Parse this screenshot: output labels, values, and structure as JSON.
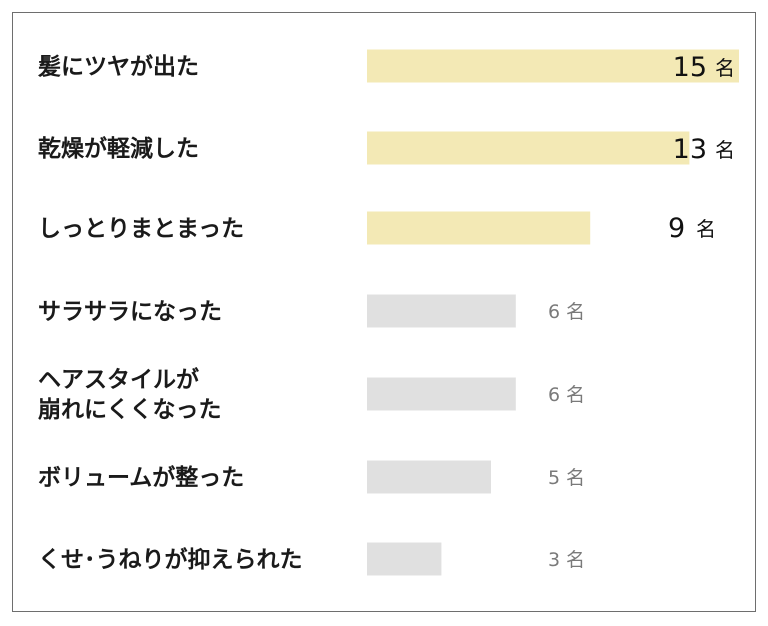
{
  "colors": {
    "highlight_bar": "#f3e9b5",
    "normal_bar": "#e0e0e0",
    "highlight_text": "#111111",
    "normal_text": "#7a7a7a"
  },
  "chart_data": {
    "type": "bar",
    "orientation": "horizontal",
    "unit": "名",
    "categories": [
      [
        "髪にツヤが出た"
      ],
      [
        "乾燥が軽減した"
      ],
      [
        "しっとりまとまった"
      ],
      [
        "サラサラになった"
      ],
      [
        "ヘアスタイルが",
        "崩れにくくなった"
      ],
      [
        "ボリュームが整った"
      ],
      [
        "くせ･うねりが抑えられた"
      ]
    ],
    "values": [
      15,
      13,
      9,
      6,
      6,
      5,
      3
    ],
    "highlighted": [
      true,
      true,
      true,
      false,
      false,
      false,
      false
    ],
    "xlim": [
      0,
      15
    ],
    "grid": false,
    "legend": "none"
  }
}
